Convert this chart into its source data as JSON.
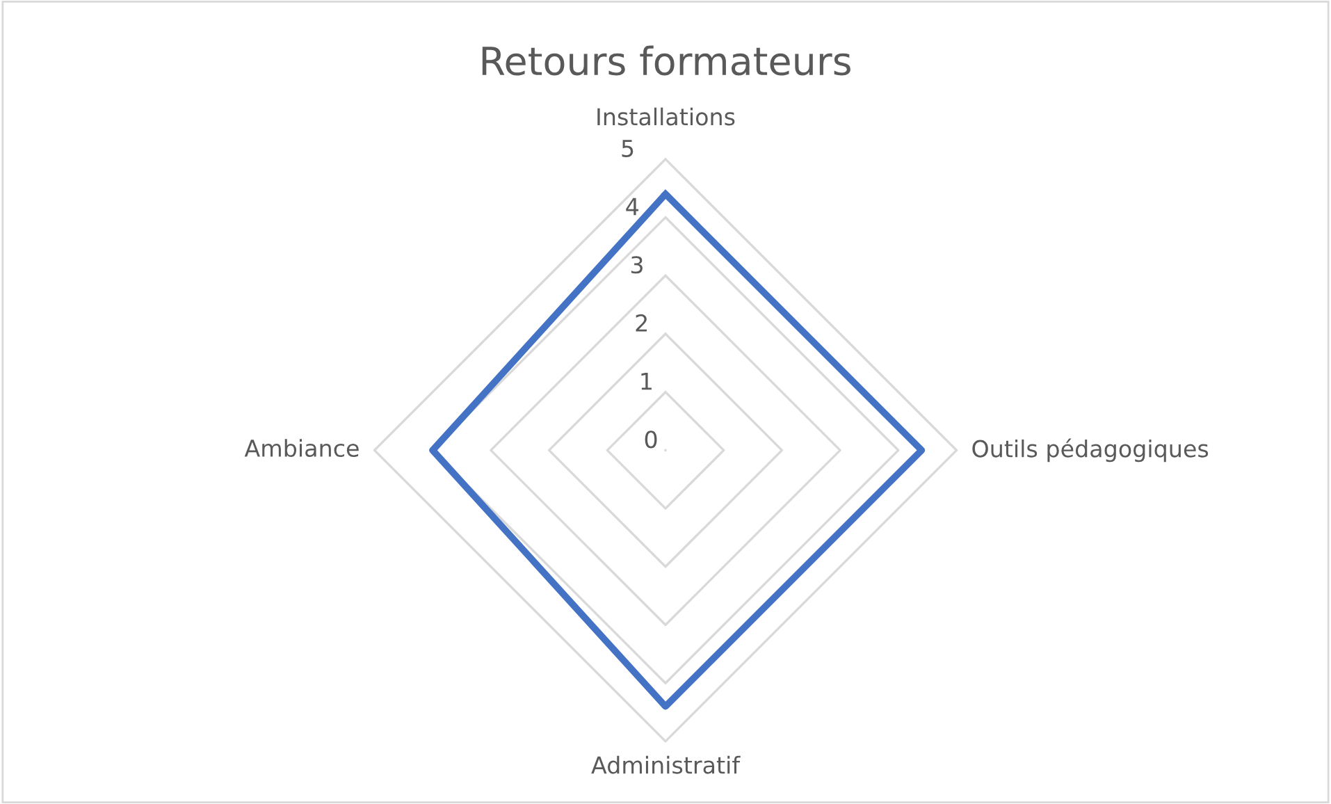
{
  "chart_data": {
    "type": "radar",
    "title": "Retours formateurs",
    "categories": [
      "Installations",
      "Outils pédagogiques",
      "Administratif",
      "Ambiance"
    ],
    "series": [
      {
        "color": "#4472c4",
        "values": [
          4.4,
          4.4,
          4.4,
          4.0
        ]
      }
    ],
    "ylim": [
      0,
      5
    ],
    "yticks": [
      0,
      1,
      2,
      3,
      4,
      5
    ],
    "grid": true,
    "marker": "none",
    "line_style": "solid"
  }
}
